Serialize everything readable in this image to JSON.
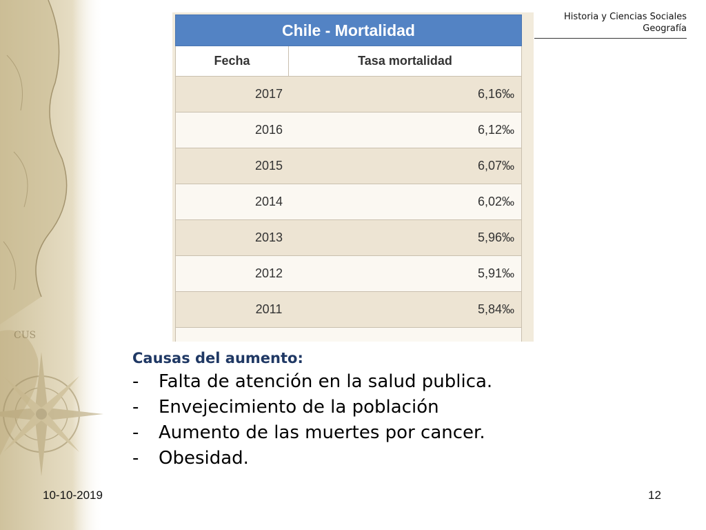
{
  "header": {
    "line1": "Historia y Ciencias Sociales",
    "line2": "Geografía"
  },
  "table": {
    "title": "Chile - Mortalidad",
    "col_date": "Fecha",
    "col_rate": "Tasa mortalidad",
    "rows": [
      {
        "year": "2017",
        "rate": "6,16‰"
      },
      {
        "year": "2016",
        "rate": "6,12‰"
      },
      {
        "year": "2015",
        "rate": "6,07‰"
      },
      {
        "year": "2014",
        "rate": "6,02‰"
      },
      {
        "year": "2013",
        "rate": "5,96‰"
      },
      {
        "year": "2012",
        "rate": "5,91‰"
      },
      {
        "year": "2011",
        "rate": "5,84‰"
      }
    ]
  },
  "causes": {
    "title": "Causas del aumento:",
    "dash": "-",
    "items": [
      "Falta de atención en la salud publica.",
      "Envejecimiento de la población",
      "Aumento de las muertes por cancer.",
      "Obesidad."
    ]
  },
  "footer": {
    "date": "10-10-2019",
    "page": "12"
  },
  "colors": {
    "title_bar": "#5383c4",
    "causes_title": "#1f3864",
    "map_tone": "#d8cba6"
  }
}
